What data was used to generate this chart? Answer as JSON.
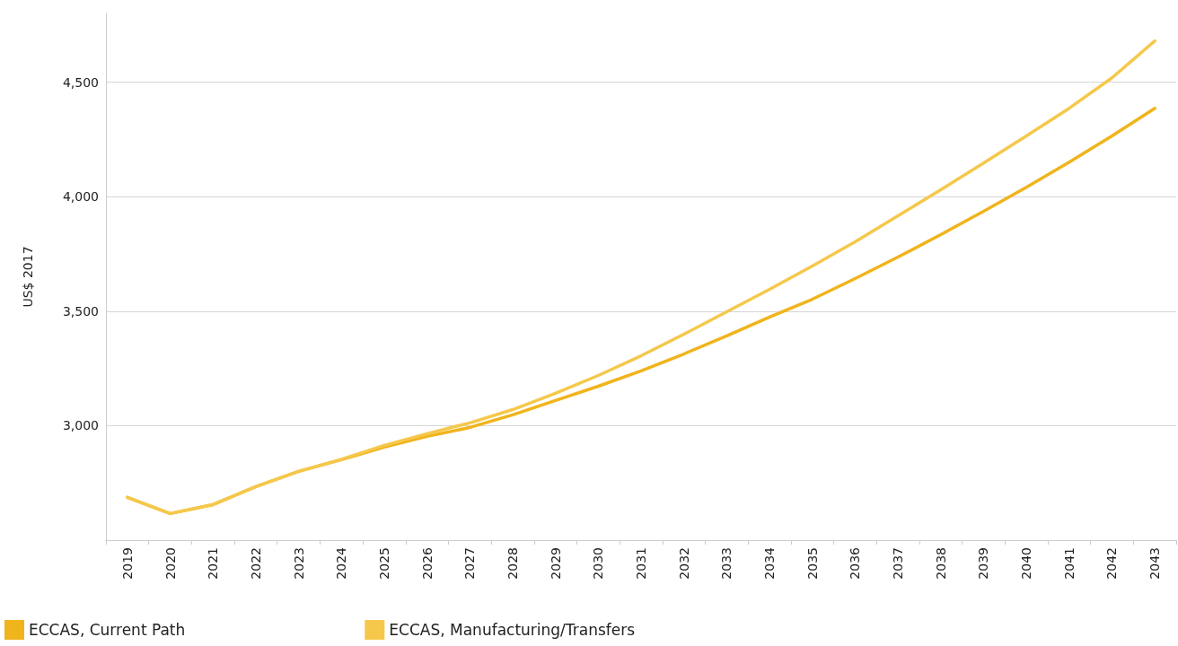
{
  "chart_data": {
    "type": "line",
    "ylabel": "US$ 2017",
    "categories": [
      "2019",
      "2020",
      "2021",
      "2022",
      "2023",
      "2024",
      "2025",
      "2026",
      "2027",
      "2028",
      "2029",
      "2030",
      "2031",
      "2032",
      "2033",
      "2034",
      "2035",
      "2036",
      "2037",
      "2038",
      "2039",
      "2040",
      "2041",
      "2042",
      "2043"
    ],
    "series": [
      {
        "name": "ECCAS, Current Path",
        "color": "#f0b41c",
        "values": [
          2687,
          2616,
          2655,
          2734,
          2800,
          2851,
          2906,
          2953,
          2992,
          3047,
          3110,
          3172,
          3239,
          3313,
          3392,
          3474,
          3552,
          3642,
          3736,
          3834,
          3936,
          4041,
          4151,
          4265,
          4386
        ]
      },
      {
        "name": "ECCAS, Manufacturing/Transfers",
        "color": "#f5c84c",
        "values": [
          2687,
          2616,
          2655,
          2734,
          2800,
          2853,
          2914,
          2965,
          3012,
          3070,
          3141,
          3219,
          3305,
          3399,
          3497,
          3595,
          3697,
          3803,
          3916,
          4030,
          4147,
          4265,
          4386,
          4519,
          4680
        ]
      }
    ],
    "ylim": [
      2500,
      4800
    ],
    "yticks": [
      {
        "value": 3000,
        "label": "3,000"
      },
      {
        "value": 3500,
        "label": "3,500"
      },
      {
        "value": 4000,
        "label": "4,000"
      },
      {
        "value": 4500,
        "label": "4,500"
      }
    ],
    "grid": "y",
    "legend": "bottom left",
    "marker": "none",
    "line_style": "solid"
  }
}
